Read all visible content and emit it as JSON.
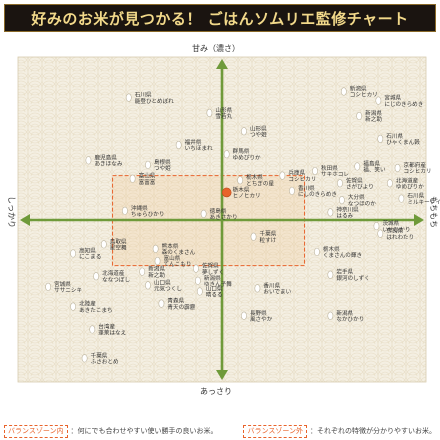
{
  "title": "好みのお米が見つかる！ ごはんソムリエ監修チャート",
  "colors": {
    "banner_bg": "#1a1410",
    "banner_text": "#f2d98a",
    "panel_bg": "#f4efe2",
    "axis": "#6f9a3a",
    "rice": "#ffffff",
    "highlight": "#e8632b"
  },
  "chart_data": {
    "type": "scatter",
    "axes": {
      "top": "甘み（濃さ）",
      "bottom": "あっさり",
      "left": "しっかり",
      "right": "もちもち"
    },
    "xlim": [
      -10,
      10
    ],
    "ylim": [
      -10,
      10
    ],
    "grid": false,
    "zones": [
      {
        "id": "balance-inner",
        "label": "バランスゾーン内",
        "note": "：何にでも合わせやすい使い勝手の良いお米。",
        "x": [
          -5.7,
          4.3
        ],
        "y": [
          -3.0,
          2.9
        ]
      },
      {
        "id": "balance-outer",
        "label": "バランスゾーン外",
        "note": "：それぞれの特徴が分かりやすいお米。"
      }
    ],
    "points": [
      {
        "label": "石川県能登ひとめぼれ",
        "x": -4.7,
        "y": 8.0
      },
      {
        "label": "山形県雪若丸",
        "x": -0.5,
        "y": 7.0
      },
      {
        "label": "山形県つや姫",
        "x": 1.3,
        "y": 5.8
      },
      {
        "label": "福井県いちほまれ",
        "x": -2.1,
        "y": 4.9
      },
      {
        "label": "群馬県ゆめぴりか",
        "x": 0.4,
        "y": 4.3
      },
      {
        "label": "鹿児島県あきほなみ",
        "x": -6.8,
        "y": 3.9
      },
      {
        "label": "島根県つや姫",
        "x": -3.7,
        "y": 3.6
      },
      {
        "label": "富山県富富富",
        "x": -4.5,
        "y": 2.7
      },
      {
        "label": "栃木県とちぎの星",
        "x": 1.1,
        "y": 2.6
      },
      {
        "label": "兵庫県コシヒカリ",
        "x": 3.3,
        "y": 2.9
      },
      {
        "label": "秋田県サキホコレ",
        "x": 5.0,
        "y": 3.2
      },
      {
        "label": "香川県にしのきらめき",
        "x": 3.8,
        "y": 1.9
      },
      {
        "label": "佐賀県さがびより",
        "x": 6.3,
        "y": 2.4
      },
      {
        "label": "福島県福、笑い",
        "x": 7.2,
        "y": 3.5
      },
      {
        "label": "北海道産ゆめぴりか",
        "x": 8.9,
        "y": 2.4
      },
      {
        "label": "京都府産コシヒカリ",
        "x": 9.3,
        "y": 3.4
      },
      {
        "label": "新潟県新之助",
        "x": 7.3,
        "y": 6.8
      },
      {
        "label": "新潟県コシヒカリ",
        "x": 6.5,
        "y": 8.4
      },
      {
        "label": "宮城県にじのきらめき",
        "x": 8.3,
        "y": 7.8
      },
      {
        "label": "石川県ひゃくまん穀",
        "x": 8.4,
        "y": 5.3
      },
      {
        "label": "石川県ミルキークイーン",
        "x": 9.5,
        "y": 1.4
      },
      {
        "label": "大分県なつほのか",
        "x": 6.4,
        "y": 1.3
      },
      {
        "label": "神奈川県はるみ",
        "x": 5.8,
        "y": 0.5
      },
      {
        "label": "茨城県いせひかり",
        "x": 8.2,
        "y": -0.4
      },
      {
        "label": "奈良県はれわたり",
        "x": 8.4,
        "y": -0.9
      },
      {
        "label": "栃木県くまさんの輝き",
        "x": 5.1,
        "y": -2.1
      },
      {
        "label": "岩手県銀河のしずく",
        "x": 5.8,
        "y": -3.6
      },
      {
        "label": "沖縄県ちゅらひかり",
        "x": -4.9,
        "y": 0.6
      },
      {
        "label": "徳島県あきさかり",
        "x": -0.8,
        "y": 0.4
      },
      {
        "label": "鳥取県星空舞",
        "x": -6.0,
        "y": -1.6
      },
      {
        "label": "熊本県森のくまさん",
        "x": -3.3,
        "y": -1.9
      },
      {
        "label": "千葉県粒すけ",
        "x": 1.8,
        "y": -1.1
      },
      {
        "label": "高知県にこまる",
        "x": -7.6,
        "y": -2.2
      },
      {
        "label": "北海道産ななつぼし",
        "x": -6.4,
        "y": -3.7
      },
      {
        "label": "宮城県ササニシキ",
        "x": -8.9,
        "y": -4.4
      },
      {
        "label": "新潟県新之助",
        "x": -4.0,
        "y": -3.4
      },
      {
        "label": "富山県てんこもり",
        "x": -3.2,
        "y": -2.7
      },
      {
        "label": "佐賀県夢しずく",
        "x": -1.2,
        "y": -3.2
      },
      {
        "label": "山口県元気つくし",
        "x": -3.7,
        "y": -4.3
      },
      {
        "label": "新潟県ゆきん子舞",
        "x": -1.1,
        "y": -4.0
      },
      {
        "label": "山口県晴るる",
        "x": -1.0,
        "y": -4.7
      },
      {
        "label": "香川県おいでまい",
        "x": 2.0,
        "y": -4.5
      },
      {
        "label": "北陸産あきたこまち",
        "x": -7.6,
        "y": -5.7
      },
      {
        "label": "青森県青天の霹靂",
        "x": -3.0,
        "y": -5.5
      },
      {
        "label": "長野県風さやか",
        "x": 1.3,
        "y": -6.3
      },
      {
        "label": "新潟県なかひかり",
        "x": 5.8,
        "y": -6.3
      },
      {
        "label": "台湾産蓬萊はなえ",
        "x": -6.6,
        "y": -7.2
      },
      {
        "label": "千葉県ふさおとめ",
        "x": -7.0,
        "y": -9.1
      },
      {
        "label": "栃木県ヒノヒカリ",
        "x": 0.4,
        "y": 1.8,
        "highlight": true
      }
    ]
  }
}
